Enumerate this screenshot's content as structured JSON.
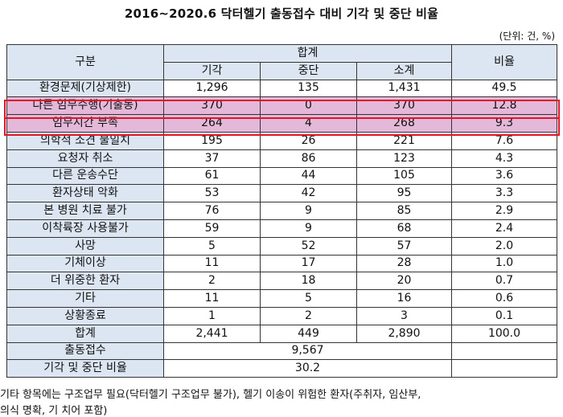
{
  "title": "2016~2020.6 닥터헬기 출동접수 대비 기각 및 중단 비율",
  "unit": "(단위: 건, %)",
  "headers": {
    "category": "구분",
    "total_group": "합계",
    "rejected": "기각",
    "stopped": "중단",
    "subtotal": "소계",
    "ratio": "비율"
  },
  "rows": [
    {
      "label": "환경문제(기상제한)",
      "rejected": "1,296",
      "stopped": "135",
      "subtotal": "1,431",
      "ratio": "49.5"
    },
    {
      "label": "다른 임무수행(기출동)",
      "rejected": "370",
      "stopped": "0",
      "subtotal": "370",
      "ratio": "12.8"
    },
    {
      "label": "임무시간 부족",
      "rejected": "264",
      "stopped": "4",
      "subtotal": "268",
      "ratio": "9.3"
    },
    {
      "label": "의학적 소견 불일치",
      "rejected": "195",
      "stopped": "26",
      "subtotal": "221",
      "ratio": "7.6"
    },
    {
      "label": "요청자 취소",
      "rejected": "37",
      "stopped": "86",
      "subtotal": "123",
      "ratio": "4.3"
    },
    {
      "label": "다른 운송수단",
      "rejected": "61",
      "stopped": "44",
      "subtotal": "105",
      "ratio": "3.6"
    },
    {
      "label": "환자상태 악화",
      "rejected": "53",
      "stopped": "42",
      "subtotal": "95",
      "ratio": "3.3"
    },
    {
      "label": "본 병원 치료 불가",
      "rejected": "76",
      "stopped": "9",
      "subtotal": "85",
      "ratio": "2.9"
    },
    {
      "label": "이착륙장 사용불가",
      "rejected": "59",
      "stopped": "9",
      "subtotal": "68",
      "ratio": "2.4"
    },
    {
      "label": "사망",
      "rejected": "5",
      "stopped": "52",
      "subtotal": "57",
      "ratio": "2.0"
    },
    {
      "label": "기체이상",
      "rejected": "11",
      "stopped": "17",
      "subtotal": "28",
      "ratio": "1.0"
    },
    {
      "label": "더 위중한 환자",
      "rejected": "2",
      "stopped": "18",
      "subtotal": "20",
      "ratio": "0.7"
    },
    {
      "label": "기타",
      "rejected": "11",
      "stopped": "5",
      "subtotal": "16",
      "ratio": "0.6"
    },
    {
      "label": "상황종료",
      "rejected": "1",
      "stopped": "2",
      "subtotal": "3",
      "ratio": "0.1"
    }
  ],
  "total": {
    "label": "합계",
    "rejected": "2,441",
    "stopped": "449",
    "subtotal": "2,890",
    "ratio": "100.0"
  },
  "dispatch": {
    "label": "출동접수",
    "value": "9,567"
  },
  "reject_ratio": {
    "label": "기각 및 중단 비율",
    "value": "30.2"
  },
  "footer_line1": "기타 항목에는 구조업무 필요(닥터헬기 구조업무 불가), 헬기 이송이 위험한 환자(주취자, 임산부,",
  "footer_line2": "의식 명확, 기 치어 포함)",
  "highlight_color": "#e4b8d8",
  "header_color": "#dce6f2",
  "box_color": "#e0162b"
}
